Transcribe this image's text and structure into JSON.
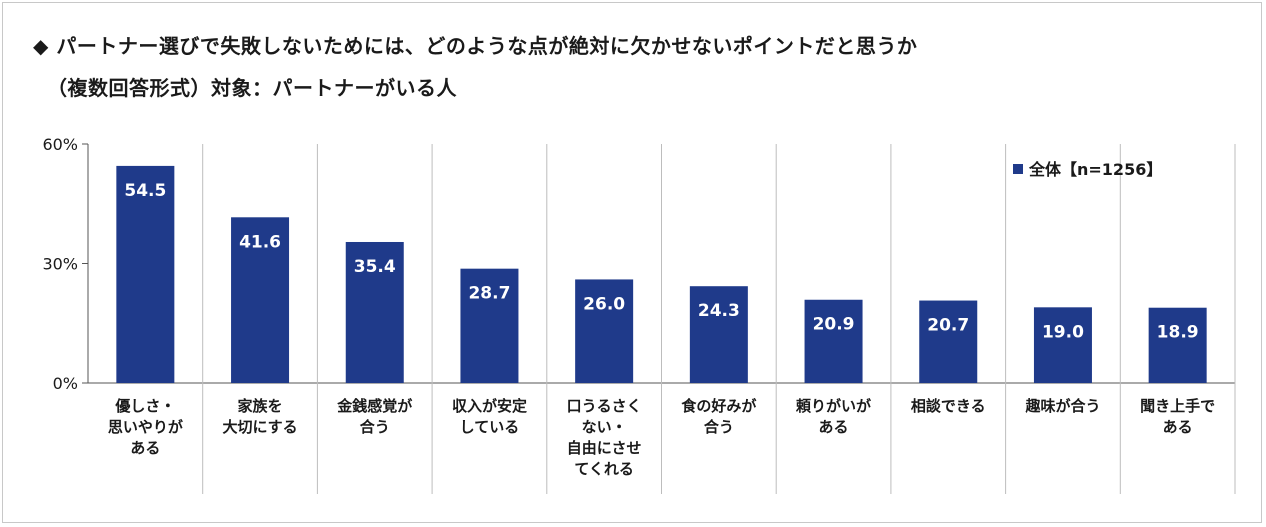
{
  "title_line1": "◆ パートナー選びで失敗しないためには、どのような点が絶対に欠かせないポイントだと思うか",
  "title_line2": "（複数回答形式）対象：パートナーがいる人",
  "colors": {
    "bar": "#1f3a8a",
    "grid": "#bdbdbd",
    "axis": "#555555"
  },
  "chart_data": {
    "type": "bar",
    "categories": [
      [
        "優しさ・",
        "思いやりが",
        "ある"
      ],
      [
        "家族を",
        "大切にする"
      ],
      [
        "金銭感覚が",
        "合う"
      ],
      [
        "収入が安定",
        "している"
      ],
      [
        "口うるさく",
        "ない・",
        "自由にさせ",
        "てくれる"
      ],
      [
        "食の好みが",
        "合う"
      ],
      [
        "頼りがいが",
        "ある"
      ],
      [
        "相談できる"
      ],
      [
        "趣味が合う"
      ],
      [
        "聞き上手で",
        "ある"
      ]
    ],
    "series": [
      {
        "name": "全体【n=1256】",
        "values": [
          54.5,
          41.6,
          35.4,
          28.7,
          26.0,
          24.3,
          20.9,
          20.7,
          19.0,
          18.9
        ]
      }
    ],
    "value_labels": [
      "54.5",
      "41.6",
      "35.4",
      "28.7",
      "26.0",
      "24.3",
      "20.9",
      "20.7",
      "19.0",
      "18.9"
    ],
    "yticks": [
      0,
      30,
      60
    ],
    "ytick_labels": [
      "0%",
      "30%",
      "60%"
    ],
    "ylim": [
      0,
      60
    ],
    "legend_position": "top-right",
    "grid": "vertical category separators"
  }
}
